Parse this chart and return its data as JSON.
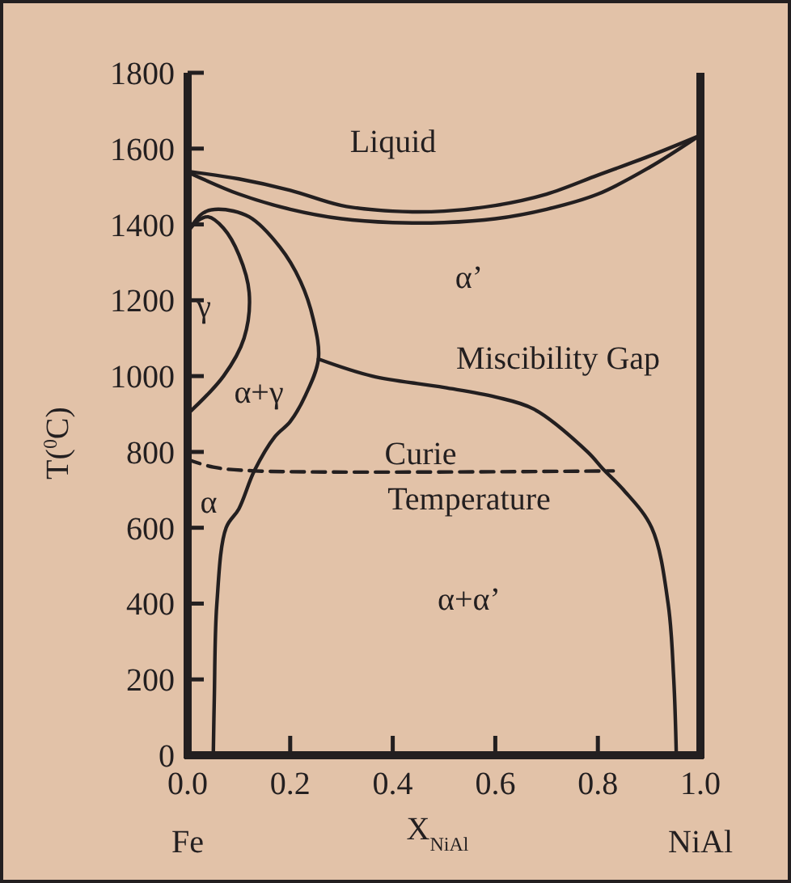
{
  "chart_data": {
    "type": "line",
    "xlabel": "X$_{NiAl}$",
    "ylabel": "T($^{0}$C)",
    "xlim": [
      0,
      1
    ],
    "ylim": [
      0,
      1800
    ],
    "xticks": [
      {
        "value": 0,
        "label": "0.0"
      },
      0.2,
      0.4,
      0.6,
      0.8,
      {
        "value": 1,
        "label": "1.0"
      }
    ],
    "yticks": [
      0,
      200,
      400,
      600,
      800,
      1000,
      1200,
      1400,
      1600,
      1800
    ],
    "grid": false,
    "marker": "none",
    "series": [
      {
        "color": "#231f20",
        "x": [
          0,
          0.1,
          0.2,
          0.3,
          0.4,
          0.5,
          0.6,
          0.7,
          0.8,
          0.9,
          1.0
        ],
        "values": [
          1540,
          1520,
          1490,
          1450,
          1435,
          1435,
          1450,
          1480,
          1530,
          1580,
          1635
        ]
      },
      {
        "color": "#231f20",
        "x": [
          0.01,
          0.1,
          0.2,
          0.3,
          0.4,
          0.5,
          0.6,
          0.7,
          0.8,
          0.9,
          0.99
        ],
        "values": [
          1532,
          1480,
          1440,
          1415,
          1405,
          1405,
          1415,
          1440,
          1480,
          1550,
          1627
        ]
      },
      {
        "color": "#231f20",
        "x": [
          0,
          0.02,
          0.04,
          0.07,
          0.1,
          0.12,
          0.11,
          0.07,
          0
        ],
        "values": [
          1380,
          1410,
          1420,
          1390,
          1320,
          1220,
          1100,
          1000,
          900
        ]
      },
      {
        "color": "#231f20",
        "x": [
          0,
          0.03,
          0.06,
          0.12,
          0.18,
          0.22,
          0.245,
          0.255,
          0.23,
          0.2,
          0.17,
          0.13,
          0.1,
          0.075,
          0.057,
          0.052,
          0.05
        ],
        "values": [
          1380,
          1430,
          1440,
          1420,
          1340,
          1250,
          1150,
          1045,
          950,
          880,
          840,
          750,
          650,
          600,
          400,
          150,
          0
        ]
      },
      {
        "color": "#231f20",
        "x": [
          0.255,
          0.36,
          0.5,
          0.6,
          0.675,
          0.78,
          0.81,
          0.85,
          0.905,
          0.937,
          0.948,
          0.953
        ],
        "values": [
          1045,
          1000,
          970,
          945,
          913,
          800,
          755,
          700,
          600,
          400,
          200,
          0
        ]
      },
      {
        "color": "#231f20",
        "line_style": "dashed",
        "x": [
          0,
          0.05,
          0.13,
          0.83
        ],
        "values": [
          780,
          760,
          750,
          750
        ]
      }
    ],
    "annotations": [
      "Liquid",
      "α’",
      "Miscibility Gap",
      "γ",
      "α+γ",
      "Curie",
      "Temperature",
      "α",
      "α+α’",
      "Fe",
      "NiAl"
    ]
  }
}
